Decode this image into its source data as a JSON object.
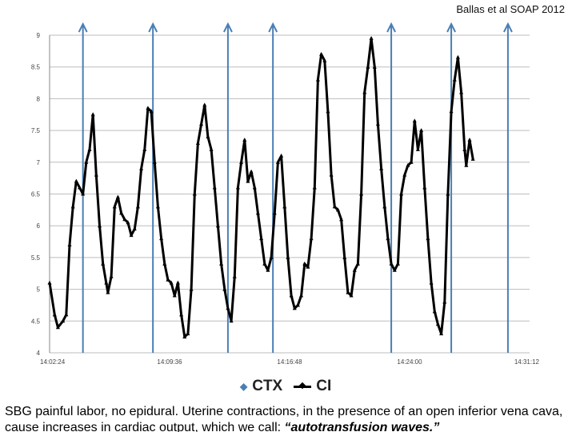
{
  "source_label": "Ballas et al SOAP 2012",
  "caption": {
    "text": "SBG painful labor, no epidural. Uterine contractions, in the presence of an open inferior vena cava, cause increases in cardiac output, which we call: ",
    "emphasis": "“autotransfusion waves.”"
  },
  "chart_data": {
    "type": "line",
    "title": "",
    "xlabel": "",
    "ylabel": "",
    "ylim": [
      4,
      9
    ],
    "yticks": [
      "4",
      "4.5",
      "5",
      "5.5",
      "6",
      "6.5",
      "7",
      "7.5",
      "8",
      "8.5",
      "9"
    ],
    "x_tick_labels": [
      "14:02:24",
      "14:09:36",
      "14:16:48",
      "14:24:00",
      "14:31:12"
    ],
    "x_range_minutes": [
      0,
      28.8
    ],
    "grid": true,
    "legend": {
      "placement": "bottom-center",
      "entries": [
        "CTX",
        "CI"
      ]
    },
    "colors": {
      "CTX": "#4a7fb5",
      "CI": "#000000"
    },
    "series": [
      {
        "name": "CI",
        "points": [
          [
            0.0,
            5.1
          ],
          [
            0.3,
            4.6
          ],
          [
            0.5,
            4.4
          ],
          [
            0.8,
            4.5
          ],
          [
            1.0,
            4.6
          ],
          [
            1.2,
            5.7
          ],
          [
            1.4,
            6.3
          ],
          [
            1.6,
            6.7
          ],
          [
            1.8,
            6.6
          ],
          [
            2.0,
            6.5
          ],
          [
            2.2,
            7.0
          ],
          [
            2.4,
            7.2
          ],
          [
            2.6,
            7.75
          ],
          [
            2.8,
            6.8
          ],
          [
            3.0,
            6.0
          ],
          [
            3.2,
            5.4
          ],
          [
            3.4,
            5.1
          ],
          [
            3.5,
            4.95
          ],
          [
            3.7,
            5.2
          ],
          [
            3.9,
            6.3
          ],
          [
            4.1,
            6.45
          ],
          [
            4.3,
            6.2
          ],
          [
            4.5,
            6.1
          ],
          [
            4.7,
            6.05
          ],
          [
            4.9,
            5.85
          ],
          [
            5.1,
            5.95
          ],
          [
            5.3,
            6.3
          ],
          [
            5.5,
            6.9
          ],
          [
            5.7,
            7.2
          ],
          [
            5.9,
            7.85
          ],
          [
            6.1,
            7.8
          ],
          [
            6.3,
            7.0
          ],
          [
            6.5,
            6.3
          ],
          [
            6.7,
            5.8
          ],
          [
            6.9,
            5.4
          ],
          [
            7.1,
            5.15
          ],
          [
            7.3,
            5.1
          ],
          [
            7.5,
            4.9
          ],
          [
            7.7,
            5.1
          ],
          [
            7.9,
            4.6
          ],
          [
            8.1,
            4.25
          ],
          [
            8.3,
            4.3
          ],
          [
            8.5,
            5.0
          ],
          [
            8.7,
            6.5
          ],
          [
            8.9,
            7.3
          ],
          [
            9.1,
            7.6
          ],
          [
            9.3,
            7.9
          ],
          [
            9.5,
            7.4
          ],
          [
            9.7,
            7.2
          ],
          [
            9.9,
            6.6
          ],
          [
            10.1,
            6.0
          ],
          [
            10.3,
            5.4
          ],
          [
            10.5,
            5.0
          ],
          [
            10.7,
            4.7
          ],
          [
            10.9,
            4.5
          ],
          [
            11.1,
            5.2
          ],
          [
            11.3,
            6.6
          ],
          [
            11.5,
            7.0
          ],
          [
            11.7,
            7.35
          ],
          [
            11.9,
            6.7
          ],
          [
            12.1,
            6.85
          ],
          [
            12.3,
            6.6
          ],
          [
            12.5,
            6.2
          ],
          [
            12.7,
            5.8
          ],
          [
            12.9,
            5.4
          ],
          [
            13.1,
            5.3
          ],
          [
            13.3,
            5.5
          ],
          [
            13.5,
            6.2
          ],
          [
            13.7,
            7.0
          ],
          [
            13.9,
            7.1
          ],
          [
            14.1,
            6.3
          ],
          [
            14.3,
            5.5
          ],
          [
            14.5,
            4.9
          ],
          [
            14.7,
            4.7
          ],
          [
            14.9,
            4.75
          ],
          [
            15.1,
            4.9
          ],
          [
            15.3,
            5.4
          ],
          [
            15.5,
            5.35
          ],
          [
            15.7,
            5.8
          ],
          [
            15.9,
            6.6
          ],
          [
            16.1,
            8.3
          ],
          [
            16.3,
            8.7
          ],
          [
            16.5,
            8.6
          ],
          [
            16.7,
            7.8
          ],
          [
            16.9,
            6.8
          ],
          [
            17.1,
            6.3
          ],
          [
            17.3,
            6.25
          ],
          [
            17.5,
            6.1
          ],
          [
            17.7,
            5.5
          ],
          [
            17.9,
            4.95
          ],
          [
            18.1,
            4.9
          ],
          [
            18.3,
            5.3
          ],
          [
            18.5,
            5.4
          ],
          [
            18.7,
            6.5
          ],
          [
            18.9,
            8.1
          ],
          [
            19.1,
            8.5
          ],
          [
            19.3,
            8.95
          ],
          [
            19.5,
            8.5
          ],
          [
            19.7,
            7.6
          ],
          [
            19.9,
            6.9
          ],
          [
            20.1,
            6.3
          ],
          [
            20.3,
            5.8
          ],
          [
            20.5,
            5.4
          ],
          [
            20.7,
            5.3
          ],
          [
            20.9,
            5.4
          ],
          [
            21.1,
            6.5
          ],
          [
            21.3,
            6.8
          ],
          [
            21.5,
            6.95
          ],
          [
            21.7,
            7.0
          ],
          [
            21.9,
            7.65
          ],
          [
            22.1,
            7.2
          ],
          [
            22.3,
            7.5
          ],
          [
            22.5,
            6.6
          ],
          [
            22.7,
            5.8
          ],
          [
            22.9,
            5.1
          ],
          [
            23.1,
            4.65
          ],
          [
            23.3,
            4.45
          ],
          [
            23.5,
            4.3
          ],
          [
            23.7,
            4.8
          ],
          [
            23.9,
            6.5
          ],
          [
            24.1,
            7.8
          ],
          [
            24.3,
            8.3
          ],
          [
            24.5,
            8.65
          ],
          [
            24.7,
            8.1
          ],
          [
            24.9,
            7.2
          ],
          [
            25.0,
            6.95
          ],
          [
            25.2,
            7.35
          ],
          [
            25.4,
            7.05
          ]
        ]
      },
      {
        "name": "CTX",
        "markers_at_minutes": [
          2.0,
          6.2,
          10.7,
          13.4,
          20.5,
          24.1,
          27.5
        ],
        "note_type": "arrow-up"
      }
    ]
  }
}
